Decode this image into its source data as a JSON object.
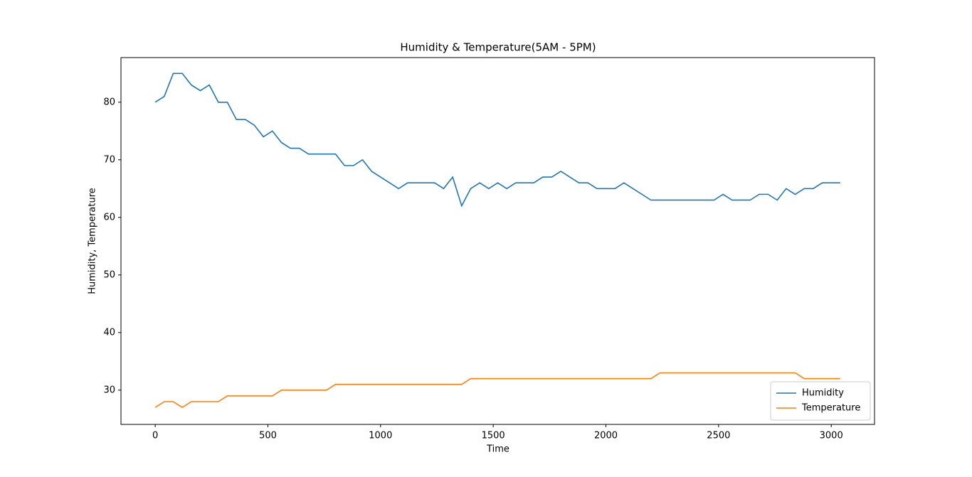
{
  "chart_data": {
    "type": "line",
    "title": "Humidity & Temperature(5AM - 5PM)",
    "x_label": "Time",
    "y_label": "Humidity, Temperature",
    "x": [
      0,
      40,
      80,
      120,
      160,
      200,
      240,
      280,
      320,
      360,
      400,
      440,
      480,
      520,
      560,
      600,
      640,
      680,
      720,
      760,
      800,
      840,
      880,
      920,
      960,
      1000,
      1040,
      1080,
      1120,
      1160,
      1200,
      1240,
      1280,
      1320,
      1360,
      1400,
      1440,
      1480,
      1520,
      1560,
      1600,
      1640,
      1680,
      1720,
      1760,
      1800,
      1840,
      1880,
      1920,
      1960,
      2000,
      2040,
      2080,
      2120,
      2160,
      2200,
      2240,
      2280,
      2320,
      2360,
      2400,
      2440,
      2480,
      2520,
      2560,
      2600,
      2640,
      2680,
      2720,
      2760,
      2800,
      2840,
      2880,
      2920,
      2960,
      3000,
      3040
    ],
    "series": [
      {
        "name": "Humidity",
        "color": "#1f77b4",
        "values": [
          80,
          81,
          85,
          85,
          83,
          82,
          83,
          80,
          80,
          77,
          77,
          76,
          74,
          75,
          73,
          72,
          72,
          71,
          71,
          71,
          71,
          69,
          69,
          70,
          68,
          67,
          66,
          65,
          66,
          66,
          66,
          66,
          65,
          67,
          62,
          65,
          66,
          65,
          66,
          65,
          66,
          66,
          66,
          67,
          67,
          68,
          67,
          66,
          66,
          65,
          65,
          65,
          66,
          65,
          64,
          63,
          63,
          63,
          63,
          63,
          63,
          63,
          63,
          64,
          63,
          63,
          63,
          64,
          64,
          63,
          65,
          64,
          65,
          65,
          66,
          66,
          66
        ]
      },
      {
        "name": "Temperature",
        "color": "#ff7f0e",
        "values": [
          27,
          28,
          28,
          27,
          28,
          28,
          28,
          28,
          29,
          29,
          29,
          29,
          29,
          29,
          30,
          30,
          30,
          30,
          30,
          30,
          31,
          31,
          31,
          31,
          31,
          31,
          31,
          31,
          31,
          31,
          31,
          31,
          31,
          31,
          31,
          32,
          32,
          32,
          32,
          32,
          32,
          32,
          32,
          32,
          32,
          32,
          32,
          32,
          32,
          32,
          32,
          32,
          32,
          32,
          32,
          32,
          33,
          33,
          33,
          33,
          33,
          33,
          33,
          33,
          33,
          33,
          33,
          33,
          33,
          33,
          33,
          33,
          32,
          32,
          32,
          32,
          32
        ]
      }
    ],
    "xlim": [
      -152,
      3192
    ],
    "ylim": [
      24.05,
      87.75
    ],
    "xticks": [
      0,
      500,
      1000,
      1500,
      2000,
      2500,
      3000
    ],
    "yticks": [
      30,
      40,
      50,
      60,
      70,
      80
    ],
    "legend": "lower right"
  }
}
